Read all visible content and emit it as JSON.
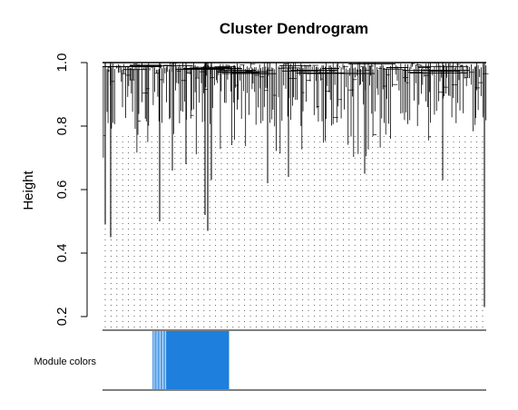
{
  "chart_data": {
    "type": "dendrogram",
    "title": "Cluster Dendrogram",
    "xlabel": "",
    "ylabel": "Height",
    "ylim": [
      0.2,
      1.0
    ],
    "yticks": [
      {
        "value": 0.2,
        "label": "0.2"
      },
      {
        "value": 0.4,
        "label": "0.4"
      },
      {
        "value": 0.6,
        "label": "0.6"
      },
      {
        "value": 0.8,
        "label": "0.8"
      },
      {
        "value": 1.0,
        "label": "1.0"
      }
    ],
    "grid": "dotted vertical leaf lines",
    "notable_merge_heights": [
      0.49,
      0.45,
      0.5,
      0.52,
      0.47,
      0.63,
      0.23
    ],
    "color_row": {
      "label": "Module colors",
      "segments": [
        {
          "from_fraction": 0.0,
          "to_fraction": 0.13,
          "color": "#ffffff"
        },
        {
          "from_fraction": 0.13,
          "to_fraction": 0.165,
          "color": "#5aa0e6"
        },
        {
          "from_fraction": 0.165,
          "to_fraction": 0.33,
          "color": "#1e7fdc"
        },
        {
          "from_fraction": 0.33,
          "to_fraction": 1.0,
          "color": "#ffffff"
        }
      ]
    }
  }
}
